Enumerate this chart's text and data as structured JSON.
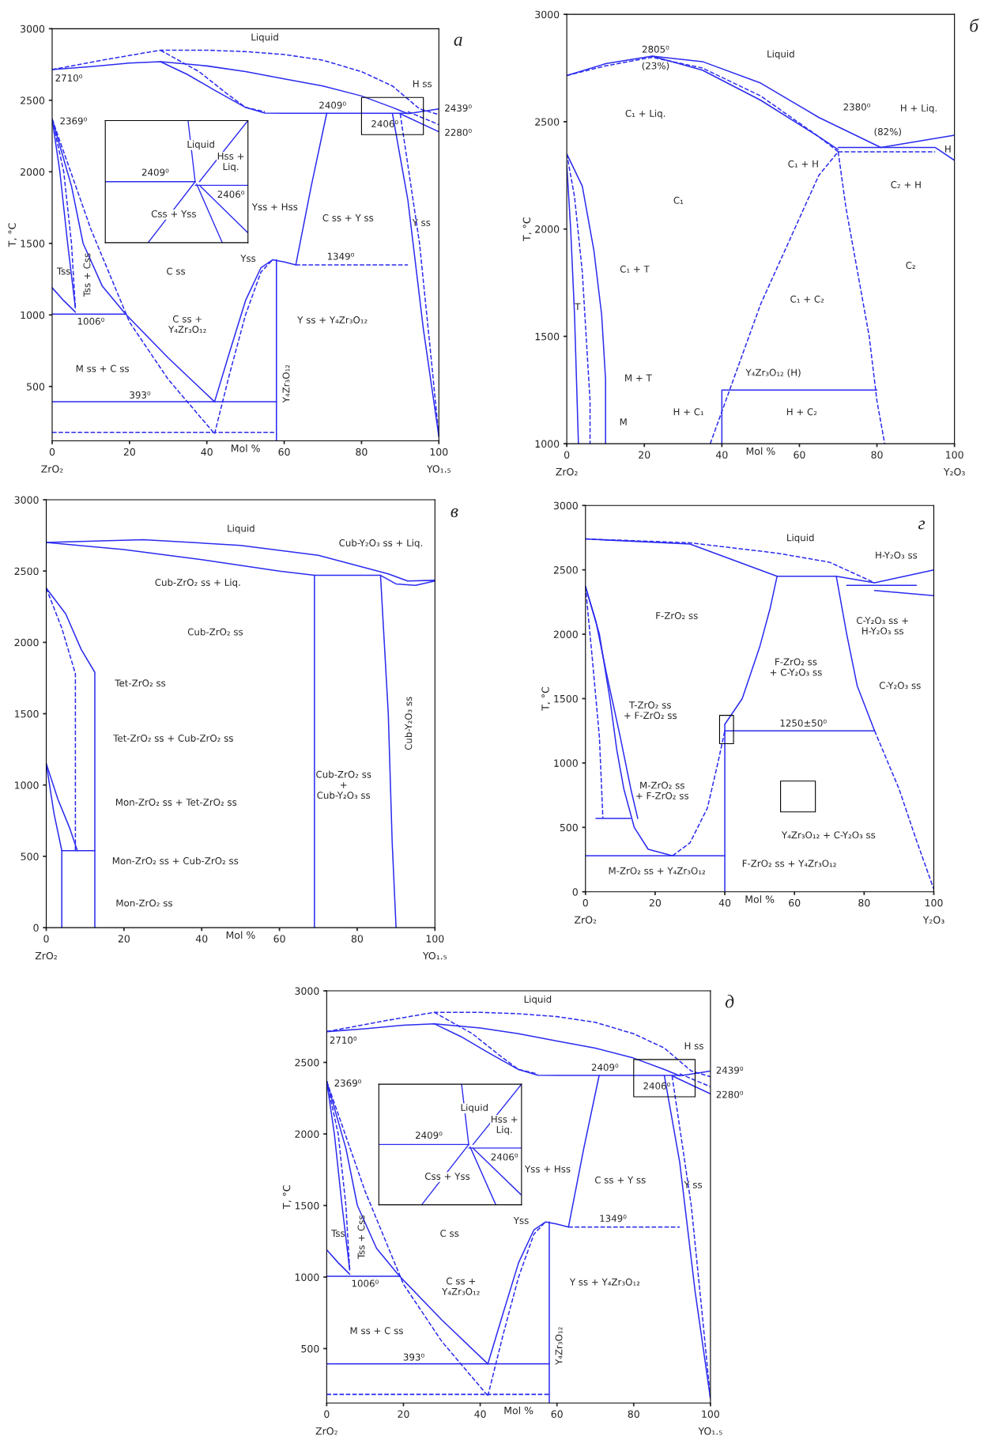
{
  "chart_data": [
    {
      "type": "line",
      "title": "а",
      "xlabel": "Mol %",
      "ylabel": "T, °C",
      "xlim": [
        0,
        100
      ],
      "ylim": [
        120,
        3000
      ],
      "xticks": [
        0,
        20,
        40,
        60,
        80,
        100
      ],
      "yticks": [
        500,
        1000,
        1500,
        2000,
        2500,
        3000
      ],
      "series": [
        {
          "color": "#2b2bf0",
          "line_style": "solid",
          "x": [
            0,
            10,
            20,
            28,
            40,
            50,
            60,
            70,
            80,
            88,
            92,
            100
          ],
          "values": [
            2715,
            2735,
            2760,
            2770,
            2740,
            2700,
            2650,
            2600,
            2530,
            2450,
            2406,
            2439
          ]
        },
        {
          "color": "#2b2bf0",
          "line_style": "solid",
          "x": [
            28,
            35,
            42,
            50,
            55,
            60,
            92
          ],
          "values": [
            2770,
            2680,
            2570,
            2450,
            2410,
            2409,
            2409
          ]
        },
        {
          "color": "#2b2bf0",
          "line_style": "dashed",
          "x": [
            0,
            15,
            28,
            40,
            50,
            60,
            70,
            80,
            88,
            95,
            100
          ],
          "values": [
            2715,
            2790,
            2850,
            2850,
            2840,
            2820,
            2780,
            2700,
            2600,
            2440,
            2400
          ]
        },
        {
          "color": "#2b2bf0",
          "line_style": "dashed",
          "x": [
            28,
            38,
            45,
            50,
            55
          ],
          "values": [
            2850,
            2700,
            2550,
            2450,
            2420
          ]
        },
        {
          "color": "#2b2bf0",
          "line_style": "solid",
          "x": [
            88,
            92,
            96,
            100
          ],
          "values": [
            2406,
            1800,
            900,
            150
          ]
        },
        {
          "color": "#2b2bf0",
          "line_style": "dashed",
          "x": [
            90,
            95,
            98,
            100
          ],
          "values": [
            2406,
            1500,
            700,
            150
          ]
        },
        {
          "color": "#2b2bf0",
          "line_style": "solid",
          "x": [
            90,
            100
          ],
          "values": [
            2406,
            2280
          ]
        },
        {
          "color": "#2b2bf0",
          "line_style": "dashed",
          "x": [
            92,
            100
          ],
          "values": [
            2420,
            2330
          ]
        },
        {
          "color": "#2b2bf0",
          "line_style": "solid",
          "x": [
            0,
            5,
            8,
            13,
            19,
            30,
            42
          ],
          "values": [
            2369,
            1900,
            1500,
            1200,
            1006,
            700,
            393
          ]
        },
        {
          "color": "#2b2bf0",
          "line_style": "solid",
          "x": [
            0,
            2,
            4,
            6
          ],
          "values": [
            2369,
            2000,
            1500,
            1050
          ]
        },
        {
          "color": "#2b2bf0",
          "line_style": "dashed",
          "x": [
            0,
            3,
            5,
            6
          ],
          "values": [
            2369,
            2000,
            1500,
            1050
          ]
        },
        {
          "color": "#2b2bf0",
          "line_style": "solid",
          "x": [
            0,
            3,
            6
          ],
          "values": [
            1190,
            1100,
            1020
          ]
        },
        {
          "color": "#2b2bf0",
          "line_style": "solid",
          "x": [
            0,
            19
          ],
          "values": [
            1006,
            1006
          ]
        },
        {
          "color": "#2b2bf0",
          "line_style": "dashed",
          "x": [
            0,
            10,
            20,
            30,
            42
          ],
          "values": [
            2369,
            1600,
            950,
            550,
            170
          ]
        },
        {
          "color": "#2b2bf0",
          "line_style": "solid",
          "x": [
            0,
            58
          ],
          "values": [
            393,
            393
          ]
        },
        {
          "color": "#2b2bf0",
          "line_style": "dashed",
          "x": [
            0,
            58
          ],
          "values": [
            180,
            180
          ]
        },
        {
          "color": "#2b2bf0",
          "line_style": "solid",
          "x": [
            42,
            46,
            50,
            54,
            57,
            60,
            63,
            67,
            71
          ],
          "values": [
            393,
            750,
            1100,
            1330,
            1385,
            1370,
            1349,
            1900,
            2409
          ]
        },
        {
          "color": "#2b2bf0",
          "line_style": "dashed",
          "x": [
            42,
            46,
            50,
            54,
            57
          ],
          "values": [
            170,
            600,
            1000,
            1300,
            1385
          ]
        },
        {
          "color": "#2b2bf0",
          "line_style": "solid",
          "x": [
            58,
            58
          ],
          "values": [
            120,
            1385
          ]
        },
        {
          "color": "#2b2bf0",
          "line_style": "dashed",
          "x": [
            63,
            92
          ],
          "values": [
            1349,
            1349
          ]
        }
      ],
      "annotations": [
        "Liquid",
        "2710⁰",
        "2369⁰",
        "2409⁰",
        "2406⁰",
        "H ss",
        "2439⁰",
        "2280⁰",
        "C ss + Y ss",
        "Y ss",
        "Tss",
        "Tss + Css",
        "C ss",
        "1349⁰",
        "1006⁰",
        "C ss +\nY₄Zr₃O₁₂",
        "Y ss + Y₄Zr₃O₁₂",
        "M ss + C ss",
        "393⁰",
        "Y₄Zr₃O₁₂",
        "Yss + Hss",
        "Yss",
        "Liquid",
        "Hss +\nLiq.",
        "2409⁰",
        "2406⁰",
        "Css + Yss",
        "ZrO₂",
        "YO₁.₅"
      ]
    },
    {
      "type": "line",
      "title": "б",
      "xlabel": "Mol %",
      "ylabel": "T, °C",
      "xlim": [
        0,
        100
      ],
      "ylim": [
        1000,
        3000
      ],
      "xticks": [
        0,
        20,
        40,
        60,
        80,
        100
      ],
      "yticks": [
        1000,
        1500,
        2000,
        2500,
        3000
      ],
      "series": [
        {
          "color": "#2b2bf0",
          "line_style": "solid",
          "x": [
            0,
            10,
            22,
            35,
            50,
            65,
            81,
            100
          ],
          "values": [
            2715,
            2770,
            2805,
            2780,
            2680,
            2520,
            2380,
            2437
          ]
        },
        {
          "color": "#2b2bf0",
          "line_style": "dashed",
          "x": [
            0,
            10,
            22,
            35,
            50,
            65,
            70
          ],
          "values": [
            2715,
            2760,
            2800,
            2750,
            2620,
            2430,
            2360
          ]
        },
        {
          "color": "#2b2bf0",
          "line_style": "solid",
          "x": [
            22,
            35,
            50,
            65,
            70
          ],
          "values": [
            2805,
            2740,
            2600,
            2430,
            2370
          ]
        },
        {
          "color": "#2b2bf0",
          "line_style": "solid",
          "x": [
            70,
            95,
            100
          ],
          "values": [
            2380,
            2380,
            2320
          ]
        },
        {
          "color": "#2b2bf0",
          "line_style": "dashed",
          "x": [
            70,
            95
          ],
          "values": [
            2360,
            2360
          ]
        },
        {
          "color": "#2b2bf0",
          "line_style": "solid",
          "x": [
            0,
            4,
            7,
            9,
            10,
            10
          ],
          "values": [
            2350,
            2200,
            1900,
            1600,
            1300,
            1000
          ]
        },
        {
          "color": "#2b2bf0",
          "line_style": "dashed",
          "x": [
            0,
            2,
            4,
            5,
            6,
            6
          ],
          "values": [
            2350,
            2150,
            1800,
            1500,
            1200,
            1000
          ]
        },
        {
          "color": "#2b2bf0",
          "line_style": "solid",
          "x": [
            0,
            1,
            2,
            2.5,
            3
          ],
          "values": [
            2300,
            2000,
            1600,
            1300,
            1000
          ]
        },
        {
          "color": "#2b2bf0",
          "line_style": "dashed",
          "x": [
            37,
            40,
            45,
            50,
            55,
            60,
            65,
            70
          ],
          "values": [
            1000,
            1150,
            1400,
            1650,
            1850,
            2050,
            2250,
            2360
          ]
        },
        {
          "color": "#2b2bf0",
          "line_style": "dashed",
          "x": [
            70,
            72,
            75,
            78,
            80,
            82
          ],
          "values": [
            2360,
            2100,
            1800,
            1500,
            1200,
            1000
          ]
        },
        {
          "color": "#2b2bf0",
          "line_style": "solid",
          "x": [
            40,
            40,
            80
          ],
          "values": [
            1000,
            1250,
            1250
          ]
        }
      ],
      "annotations": [
        "Liquid",
        "2805⁰",
        "(23%)",
        "C₁ + Liq.",
        "2380⁰",
        "(82%)",
        "H + Liq.",
        "H",
        "C₁ + H",
        "C₂ + H",
        "C₁",
        "C₂",
        "C₁ + T",
        "T",
        "C₁ + C₂",
        "M + T",
        "Y₄Zr₃O₁₂ (H)",
        "M",
        "H + C₁",
        "H + C₂",
        "ZrO₂",
        "Y₂O₃"
      ]
    },
    {
      "type": "line",
      "title": "в",
      "xlabel": "Mol %",
      "xlim": [
        0,
        100
      ],
      "ylim": [
        0,
        3000
      ],
      "xticks": [
        0,
        20,
        40,
        60,
        80,
        100
      ],
      "yticks": [
        0,
        500,
        1000,
        1500,
        2000,
        2500,
        3000
      ],
      "series": [
        {
          "color": "#2b2bf0",
          "line_style": "solid",
          "x": [
            0,
            25,
            50,
            70,
            88,
            93,
            100
          ],
          "values": [
            2700,
            2720,
            2680,
            2610,
            2480,
            2430,
            2435
          ]
        },
        {
          "color": "#2b2bf0",
          "line_style": "solid",
          "x": [
            0,
            20,
            40,
            60,
            69,
            86,
            90,
            95,
            100
          ],
          "values": [
            2700,
            2650,
            2580,
            2500,
            2470,
            2470,
            2410,
            2400,
            2430
          ]
        },
        {
          "color": "#2b2bf0",
          "line_style": "solid",
          "x": [
            69,
            69
          ],
          "values": [
            0,
            2470
          ]
        },
        {
          "color": "#2b2bf0",
          "line_style": "solid",
          "x": [
            86,
            88,
            89,
            90
          ],
          "values": [
            2470,
            1500,
            600,
            0
          ]
        },
        {
          "color": "#2b2bf0",
          "line_style": "solid",
          "x": [
            0,
            5,
            9,
            12.5,
            12.5
          ],
          "values": [
            2380,
            2200,
            1950,
            1790,
            0
          ]
        },
        {
          "color": "#2b2bf0",
          "line_style": "dashed",
          "x": [
            0,
            4,
            7.5,
            7.5
          ],
          "values": [
            2380,
            2100,
            1780,
            540
          ]
        },
        {
          "color": "#2b2bf0",
          "line_style": "solid",
          "x": [
            0,
            3,
            6,
            8
          ],
          "values": [
            1150,
            900,
            700,
            540
          ]
        },
        {
          "color": "#2b2bf0",
          "line_style": "solid",
          "x": [
            0,
            2,
            4,
            12.5
          ],
          "values": [
            1150,
            800,
            540,
            540
          ]
        },
        {
          "color": "#2b2bf0",
          "line_style": "solid",
          "x": [
            4,
            4
          ],
          "values": [
            0,
            540
          ]
        }
      ],
      "annotations": [
        "Liquid",
        "Cub-Y₂O₃ ss + Liq.",
        "Cub-ZrO₂ ss + Liq.",
        "Cub-ZrO₂ ss",
        "Tet-ZrO₂ ss",
        "Tet-ZrO₂ ss + Cub-ZrO₂ ss",
        "Mon-ZrO₂ ss + Tet-ZrO₂ ss",
        "Mon-ZrO₂ ss + Cub-ZrO₂ ss",
        "Mon-ZrO₂ ss",
        "Cub-ZrO₂ ss\n+\nCub-Y₂O₃ ss",
        "Cub-Y₂O₃ ss",
        "ZrO₂",
        "YO₁.₅"
      ]
    },
    {
      "type": "line",
      "title": "г",
      "xlabel": "Mol %",
      "ylabel": "T, °C",
      "xlim": [
        0,
        100
      ],
      "ylim": [
        0,
        3000
      ],
      "xticks": [
        0,
        20,
        40,
        60,
        80,
        100
      ],
      "yticks": [
        0,
        500,
        1000,
        1500,
        2000,
        2500,
        3000
      ],
      "series": [
        {
          "color": "#2b2bf0",
          "line_style": "dashed",
          "x": [
            0,
            30,
            55,
            70,
            83
          ],
          "values": [
            2740,
            2710,
            2630,
            2560,
            2400
          ]
        },
        {
          "color": "#2b2bf0",
          "line_style": "solid",
          "x": [
            0,
            30,
            55,
            72,
            83,
            100
          ],
          "values": [
            2740,
            2700,
            2450,
            2450,
            2400,
            2500
          ]
        },
        {
          "color": "#2b2bf0",
          "line_style": "solid",
          "x": [
            75,
            95
          ],
          "values": [
            2380,
            2380
          ]
        },
        {
          "color": "#2b2bf0",
          "line_style": "solid",
          "x": [
            83,
            100
          ],
          "values": [
            2340,
            2300
          ]
        },
        {
          "color": "#2b2bf0",
          "line_style": "solid",
          "x": [
            40,
            45,
            50,
            53,
            55
          ],
          "values": [
            1300,
            1500,
            1900,
            2200,
            2450
          ]
        },
        {
          "color": "#2b2bf0",
          "line_style": "solid",
          "x": [
            72,
            75,
            78,
            83
          ],
          "values": [
            2450,
            2000,
            1600,
            1250
          ]
        },
        {
          "color": "#2b2bf0",
          "line_style": "dashed",
          "x": [
            83,
            90,
            95,
            100
          ],
          "values": [
            1250,
            800,
            400,
            20
          ]
        },
        {
          "color": "#2b2bf0",
          "line_style": "solid",
          "x": [
            40,
            83
          ],
          "values": [
            1250,
            1250
          ]
        },
        {
          "color": "#2b2bf0",
          "line_style": "solid",
          "x": [
            40,
            40
          ],
          "values": [
            0,
            1300
          ]
        },
        {
          "color": "#2b2bf0",
          "line_style": "solid",
          "x": [
            0,
            3,
            6,
            10,
            13,
            15
          ],
          "values": [
            2370,
            2100,
            1700,
            1200,
            800,
            570
          ]
        },
        {
          "color": "#2b2bf0",
          "line_style": "dashed",
          "x": [
            0,
            2,
            4,
            5
          ],
          "values": [
            2370,
            1800,
            1200,
            570
          ]
        },
        {
          "color": "#2b2bf0",
          "line_style": "solid",
          "x": [
            0,
            4,
            7,
            9,
            11,
            14,
            18,
            25
          ],
          "values": [
            2370,
            2000,
            1500,
            1100,
            800,
            500,
            330,
            280
          ]
        },
        {
          "color": "#2b2bf0",
          "line_style": "dashed",
          "x": [
            25,
            30,
            35,
            38,
            40
          ],
          "values": [
            280,
            380,
            650,
            1000,
            1250
          ]
        },
        {
          "color": "#2b2bf0",
          "line_style": "solid",
          "x": [
            3,
            13
          ],
          "values": [
            570,
            570
          ]
        },
        {
          "color": "#2b2bf0",
          "line_style": "solid",
          "x": [
            0,
            40
          ],
          "values": [
            280,
            280
          ]
        }
      ],
      "annotations": [
        "Liquid",
        "H-Y₂O₃ ss",
        "F-ZrO₂ ss",
        "C-Y₂O₃ ss +\nH-Y₂O₃ ss",
        "F-ZrO₂ ss\n+ C-Y₂O₃ ss",
        "C-Y₂O₃ ss",
        "T-ZrO₂ ss\n+ F-ZrO₂ ss",
        "1250±50⁰",
        "M-ZrO₂ ss\n+ F-ZrO₂ ss",
        "Y₄Zr₃O₁₂ + C-Y₂O₃ ss",
        "F-ZrO₂ ss + Y₄Zr₃O₁₂",
        "M-ZrO₂ ss + Y₄Zr₃O₁₂",
        "ZrO₂",
        "Y₂O₃"
      ]
    },
    {
      "type": "line",
      "title": "д",
      "xlabel": "Mol %",
      "ylabel": "T, °C",
      "xlim": [
        0,
        100
      ],
      "ylim": [
        120,
        3000
      ],
      "xticks": [
        0,
        20,
        40,
        60,
        80,
        100
      ],
      "yticks": [
        500,
        1000,
        1500,
        2000,
        2500,
        3000
      ],
      "series": [
        {
          "color": "#2b2bf0",
          "line_style": "solid",
          "x": [
            0,
            10,
            20,
            28,
            40,
            50,
            60,
            70,
            80,
            88,
            92,
            100
          ],
          "values": [
            2715,
            2735,
            2760,
            2770,
            2740,
            2700,
            2650,
            2600,
            2530,
            2450,
            2406,
            2439
          ]
        },
        {
          "color": "#2b2bf0",
          "line_style": "solid",
          "x": [
            28,
            35,
            42,
            50,
            55,
            60,
            92
          ],
          "values": [
            2770,
            2680,
            2570,
            2450,
            2410,
            2409,
            2409
          ]
        },
        {
          "color": "#2b2bf0",
          "line_style": "dashed",
          "x": [
            0,
            15,
            28,
            40,
            50,
            60,
            70,
            80,
            88,
            95,
            100
          ],
          "values": [
            2715,
            2790,
            2850,
            2850,
            2840,
            2820,
            2780,
            2700,
            2600,
            2440,
            2400
          ]
        },
        {
          "color": "#2b2bf0",
          "line_style": "dashed",
          "x": [
            28,
            38,
            45,
            50,
            55
          ],
          "values": [
            2850,
            2700,
            2550,
            2450,
            2420
          ]
        },
        {
          "color": "#2b2bf0",
          "line_style": "solid",
          "x": [
            88,
            92,
            96,
            100
          ],
          "values": [
            2406,
            1800,
            900,
            150
          ]
        },
        {
          "color": "#2b2bf0",
          "line_style": "dashed",
          "x": [
            90,
            95,
            98,
            100
          ],
          "values": [
            2406,
            1500,
            700,
            150
          ]
        },
        {
          "color": "#2b2bf0",
          "line_style": "solid",
          "x": [
            90,
            100
          ],
          "values": [
            2406,
            2280
          ]
        },
        {
          "color": "#2b2bf0",
          "line_style": "dashed",
          "x": [
            92,
            100
          ],
          "values": [
            2420,
            2330
          ]
        },
        {
          "color": "#2b2bf0",
          "line_style": "solid",
          "x": [
            0,
            5,
            8,
            13,
            19,
            30,
            42
          ],
          "values": [
            2369,
            1900,
            1500,
            1200,
            1006,
            700,
            393
          ]
        },
        {
          "color": "#2b2bf0",
          "line_style": "solid",
          "x": [
            0,
            2,
            4,
            6
          ],
          "values": [
            2369,
            2000,
            1500,
            1050
          ]
        },
        {
          "color": "#2b2bf0",
          "line_style": "dashed",
          "x": [
            0,
            3,
            5,
            6
          ],
          "values": [
            2369,
            2000,
            1500,
            1050
          ]
        },
        {
          "color": "#2b2bf0",
          "line_style": "solid",
          "x": [
            0,
            3,
            6
          ],
          "values": [
            1190,
            1100,
            1020
          ]
        },
        {
          "color": "#2b2bf0",
          "line_style": "solid",
          "x": [
            0,
            19
          ],
          "values": [
            1006,
            1006
          ]
        },
        {
          "color": "#2b2bf0",
          "line_style": "dashed",
          "x": [
            0,
            10,
            20,
            30,
            42
          ],
          "values": [
            2369,
            1600,
            950,
            550,
            170
          ]
        },
        {
          "color": "#2b2bf0",
          "line_style": "solid",
          "x": [
            0,
            58
          ],
          "values": [
            393,
            393
          ]
        },
        {
          "color": "#2b2bf0",
          "line_style": "dashed",
          "x": [
            0,
            58
          ],
          "values": [
            180,
            180
          ]
        },
        {
          "color": "#2b2bf0",
          "line_style": "solid",
          "x": [
            42,
            46,
            50,
            54,
            57,
            60,
            63,
            67,
            71
          ],
          "values": [
            393,
            750,
            1100,
            1330,
            1385,
            1370,
            1349,
            1900,
            2409
          ]
        },
        {
          "color": "#2b2bf0",
          "line_style": "dashed",
          "x": [
            42,
            46,
            50,
            54,
            57
          ],
          "values": [
            170,
            600,
            1000,
            1300,
            1385
          ]
        },
        {
          "color": "#2b2bf0",
          "line_style": "solid",
          "x": [
            58,
            58
          ],
          "values": [
            120,
            1385
          ]
        },
        {
          "color": "#2b2bf0",
          "line_style": "dashed",
          "x": [
            63,
            92
          ],
          "values": [
            1349,
            1349
          ]
        }
      ],
      "annotations": [
        "Liquid",
        "2710⁰",
        "2369⁰",
        "2409⁰",
        "2406⁰",
        "H ss",
        "2439⁰",
        "2280⁰",
        "C ss + Y ss",
        "Y ss",
        "Tss",
        "Tss + Css",
        "C ss",
        "1349⁰",
        "1006⁰",
        "C ss +\nY₄Zr₃O₁₂",
        "Y ss + Y₄Zr₃O₁₂",
        "M ss + C ss",
        "393⁰",
        "Y₄Zr₃O₁₂",
        "Yss + Hss",
        "Yss",
        "Liquid",
        "Hss +\nLiq.",
        "2409⁰",
        "2406⁰",
        "Css + Yss",
        "ZrO₂",
        "YO₁.₅"
      ]
    }
  ]
}
